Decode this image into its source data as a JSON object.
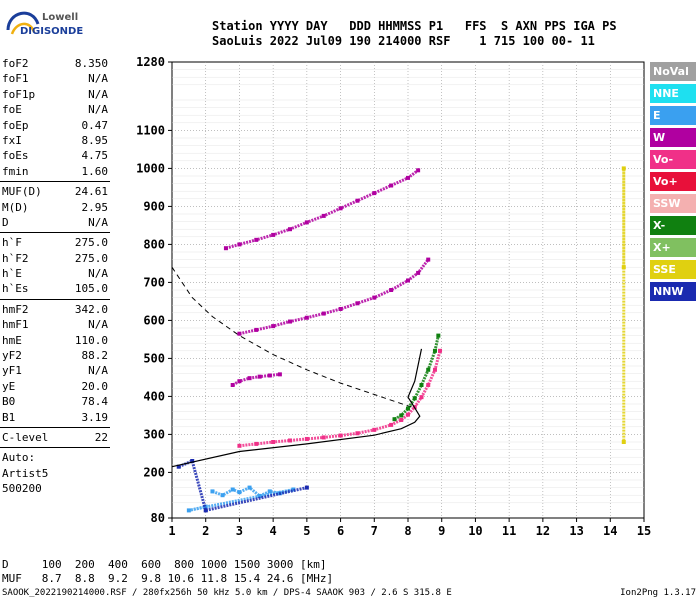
{
  "logo": {
    "line1": "Lowell",
    "line2": "DIGISONDE"
  },
  "header": {
    "line1": "Station YYYY DAY   DDD HHMMSS P1   FFS  S AXN PPS IGA PS",
    "line2": "SaoLuis 2022 Jul09 190 214000 RSF    1 715 100 00- 11"
  },
  "params": {
    "group1": [
      {
        "k": "foF2",
        "v": "8.350"
      },
      {
        "k": "foF1",
        "v": "N/A"
      },
      {
        "k": "foF1p",
        "v": "N/A"
      },
      {
        "k": "foE",
        "v": "N/A"
      },
      {
        "k": "foEp",
        "v": "0.47"
      },
      {
        "k": "fxI",
        "v": "8.95"
      },
      {
        "k": "foEs",
        "v": "4.75"
      },
      {
        "k": "fmin",
        "v": "1.60"
      }
    ],
    "group2": [
      {
        "k": "MUF(D)",
        "v": "24.61"
      },
      {
        "k": "M(D)",
        "v": "2.95"
      },
      {
        "k": "D",
        "v": "N/A"
      }
    ],
    "group3": [
      {
        "k": "h`F",
        "v": "275.0"
      },
      {
        "k": "h`F2",
        "v": "275.0"
      },
      {
        "k": "h`E",
        "v": "N/A"
      },
      {
        "k": "h`Es",
        "v": "105.0"
      }
    ],
    "group4": [
      {
        "k": "hmF2",
        "v": "342.0"
      },
      {
        "k": "hmF1",
        "v": "N/A"
      },
      {
        "k": "hmE",
        "v": "110.0"
      },
      {
        "k": "yF2",
        "v": "88.2"
      },
      {
        "k": "yF1",
        "v": "N/A"
      },
      {
        "k": "yE",
        "v": "20.0"
      },
      {
        "k": "B0",
        "v": "78.4"
      },
      {
        "k": "B1",
        "v": "3.19"
      }
    ],
    "group5": [
      {
        "k": "C-level",
        "v": "22"
      }
    ],
    "auto": [
      "Auto:",
      "Artist5",
      "500200"
    ]
  },
  "legend": [
    {
      "label": "NoVal",
      "color": "#a0a0a0"
    },
    {
      "label": "NNE",
      "color": "#1ee0f0"
    },
    {
      "label": "E",
      "color": "#3aa0f0"
    },
    {
      "label": "W",
      "color": "#b000a0"
    },
    {
      "label": "Vo-",
      "color": "#f03088"
    },
    {
      "label": "Vo+",
      "color": "#e8103a"
    },
    {
      "label": "SSW",
      "color": "#f4b0b0"
    },
    {
      "label": "X-",
      "color": "#108010"
    },
    {
      "label": "X+",
      "color": "#80c060"
    },
    {
      "label": "SSE",
      "color": "#e0d010"
    },
    {
      "label": "NNW",
      "color": "#1a2ab0"
    }
  ],
  "footer": {
    "line1": "D     100  200  400  600  800 1000 1500 3000 [km]",
    "line2": "MUF   8.7  8.8  9.2  9.8 10.6 11.8 15.4 24.6 [MHz]",
    "line3": "SAOOK_2022190214000.RSF / 280fx256h 50 kHz 5.0 km / DPS-4 SAAOK 903 / 2.6 S 315.8 E",
    "version": "Ion2Png 1.3.17"
  },
  "chart_data": {
    "type": "scatter",
    "xlim": [
      1,
      15
    ],
    "ylim": [
      80,
      1280
    ],
    "x_ticks": [
      "1",
      "2",
      "3",
      "4",
      "5",
      "6",
      "7",
      "8",
      "9",
      "10",
      "11",
      "12",
      "13",
      "14",
      "15"
    ],
    "y_ticks": [
      "80",
      "200",
      "300",
      "400",
      "500",
      "600",
      "700",
      "800",
      "900",
      "1000",
      "1100",
      "1280"
    ],
    "grid": true,
    "series": [
      {
        "color": "#f03088",
        "points": [
          [
            3.0,
            270
          ],
          [
            3.5,
            275
          ],
          [
            4.0,
            280
          ],
          [
            4.5,
            284
          ],
          [
            5.0,
            288
          ],
          [
            5.5,
            292
          ],
          [
            6.0,
            297
          ],
          [
            6.5,
            303
          ],
          [
            7.0,
            312
          ],
          [
            7.5,
            325
          ],
          [
            7.8,
            338
          ],
          [
            8.0,
            352
          ],
          [
            8.2,
            372
          ],
          [
            8.4,
            398
          ],
          [
            8.6,
            430
          ],
          [
            8.8,
            470
          ],
          [
            8.95,
            520
          ]
        ]
      },
      {
        "color": "#108010",
        "points": [
          [
            7.6,
            340
          ],
          [
            7.8,
            350
          ],
          [
            8.0,
            368
          ],
          [
            8.2,
            395
          ],
          [
            8.4,
            430
          ],
          [
            8.6,
            470
          ],
          [
            8.8,
            520
          ],
          [
            8.9,
            560
          ]
        ]
      },
      {
        "color": "#b000a0",
        "points": [
          [
            3.0,
            565
          ],
          [
            3.5,
            575
          ],
          [
            4.0,
            585
          ],
          [
            4.5,
            597
          ],
          [
            5.0,
            607
          ],
          [
            5.5,
            618
          ],
          [
            6.0,
            630
          ],
          [
            6.5,
            645
          ],
          [
            7.0,
            660
          ],
          [
            7.5,
            680
          ],
          [
            8.0,
            705
          ],
          [
            8.3,
            725
          ],
          [
            8.6,
            760
          ]
        ]
      },
      {
        "color": "#b000a0",
        "points": [
          [
            2.6,
            790
          ],
          [
            3.0,
            800
          ],
          [
            3.5,
            812
          ],
          [
            4.0,
            825
          ],
          [
            4.5,
            840
          ],
          [
            5.0,
            858
          ],
          [
            5.5,
            875
          ],
          [
            6.0,
            895
          ],
          [
            6.5,
            915
          ],
          [
            7.0,
            935
          ],
          [
            7.5,
            955
          ],
          [
            8.0,
            975
          ],
          [
            8.3,
            995
          ]
        ]
      },
      {
        "color": "#b000a0",
        "points": [
          [
            2.8,
            430
          ],
          [
            3.0,
            440
          ],
          [
            3.3,
            448
          ],
          [
            3.6,
            452
          ],
          [
            3.9,
            455
          ],
          [
            4.2,
            458
          ]
        ]
      },
      {
        "color": "#3aa0f0",
        "points": [
          [
            2.2,
            150
          ],
          [
            2.5,
            140
          ],
          [
            2.8,
            155
          ],
          [
            3.0,
            148
          ],
          [
            3.3,
            160
          ],
          [
            3.6,
            138
          ],
          [
            3.9,
            150
          ],
          [
            4.2,
            145
          ],
          [
            4.6,
            155
          ],
          [
            1.5,
            100
          ],
          [
            2.0,
            110
          ]
        ]
      },
      {
        "color": "#e0d010",
        "points": [
          [
            14.4,
            740
          ],
          [
            14.4,
            1000
          ],
          [
            14.4,
            280
          ]
        ]
      },
      {
        "color": "#1a2ab0",
        "points": [
          [
            1.2,
            215
          ],
          [
            1.6,
            230
          ],
          [
            2.0,
            100
          ],
          [
            5.0,
            160
          ]
        ]
      }
    ],
    "profile_curve": {
      "color": "#000000",
      "points": [
        [
          1.0,
          215
        ],
        [
          3.0,
          255
        ],
        [
          5.0,
          275
        ],
        [
          7.0,
          298
        ],
        [
          7.8,
          315
        ],
        [
          8.2,
          332
        ],
        [
          8.35,
          348
        ],
        [
          8.2,
          370
        ],
        [
          8.0,
          398
        ],
        [
          8.2,
          440
        ],
        [
          8.4,
          525
        ]
      ]
    },
    "muf_curve": {
      "color": "#000000",
      "dashed": true,
      "points": [
        [
          1.0,
          740
        ],
        [
          1.6,
          660
        ],
        [
          2.2,
          610
        ],
        [
          3.0,
          560
        ],
        [
          4.0,
          510
        ],
        [
          5.0,
          470
        ],
        [
          6.0,
          435
        ],
        [
          7.0,
          405
        ],
        [
          8.0,
          375
        ],
        [
          8.2,
          370
        ]
      ]
    }
  }
}
